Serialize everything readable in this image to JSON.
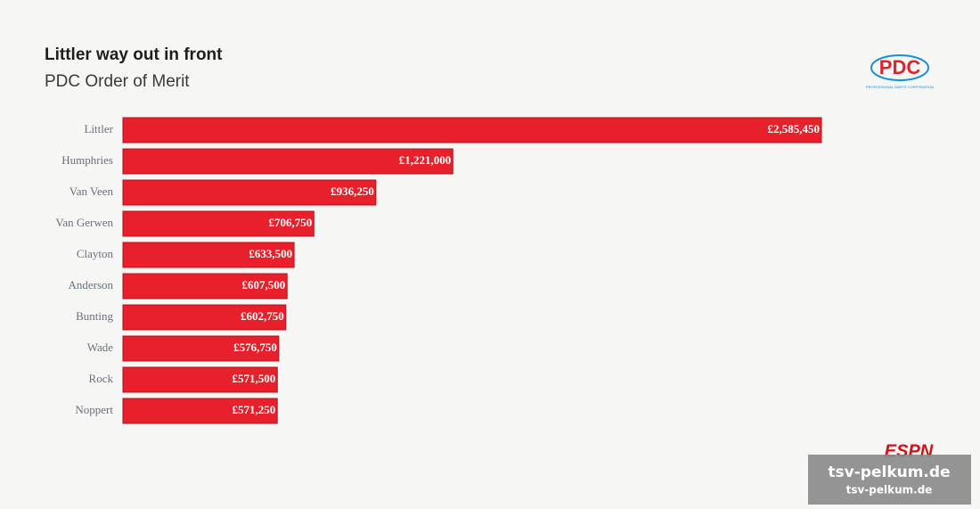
{
  "chart_data": {
    "type": "barh",
    "title": "Littler way out in front",
    "subtitle": "PDC Order of Merit",
    "categories": [
      "Littler",
      "Humphries",
      "Van Veen",
      "Van Gerwen",
      "Clayton",
      "Anderson",
      "Bunting",
      "Wade",
      "Rock",
      "Noppert"
    ],
    "values": [
      2585450,
      1221000,
      936250,
      706750,
      633500,
      607500,
      602750,
      576750,
      571500,
      571250
    ],
    "value_labels": [
      "£2,585,450",
      "£1,221,000",
      "£936,250",
      "£706,750",
      "£633,500",
      "£607,500",
      "£602,750",
      "£576,750",
      "£571,500",
      "£571,250"
    ],
    "color": "#e8202c"
  },
  "logo": {
    "text": "PDC",
    "subtext": "PROFESSIONAL DARTS CORPORATION"
  },
  "broadcaster": "ESPN",
  "watermark": [
    "tsv-pelkum.de",
    "tsv-pelkum.de"
  ]
}
